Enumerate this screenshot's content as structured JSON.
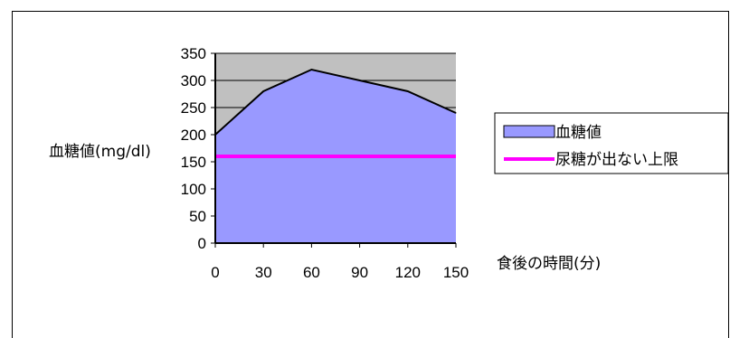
{
  "chart_data": {
    "type": "area",
    "x": [
      0,
      30,
      60,
      90,
      120,
      150
    ],
    "ylim": [
      0,
      350
    ],
    "y_ticks": [
      0,
      50,
      100,
      150,
      200,
      250,
      300,
      350
    ],
    "x_ticks": [
      "0",
      "30",
      "60",
      "90",
      "120",
      "150"
    ],
    "xlabel": "食後の時間(分)",
    "ylabel": "血糖値(mg/dl)",
    "grid": "horizontal",
    "legend_position": "right",
    "colors": {
      "plot_bg": "#c0c0c0",
      "area_fill": "#9999ff",
      "area_line": "#000000",
      "threshold_line": "#ff00ff"
    },
    "series": [
      {
        "name": "血糖値",
        "kind": "area",
        "values": [
          200,
          280,
          320,
          300,
          280,
          240
        ]
      },
      {
        "name": "尿糖が出ない上限",
        "kind": "line",
        "values": [
          160,
          160,
          160,
          160,
          160,
          160
        ]
      }
    ]
  }
}
